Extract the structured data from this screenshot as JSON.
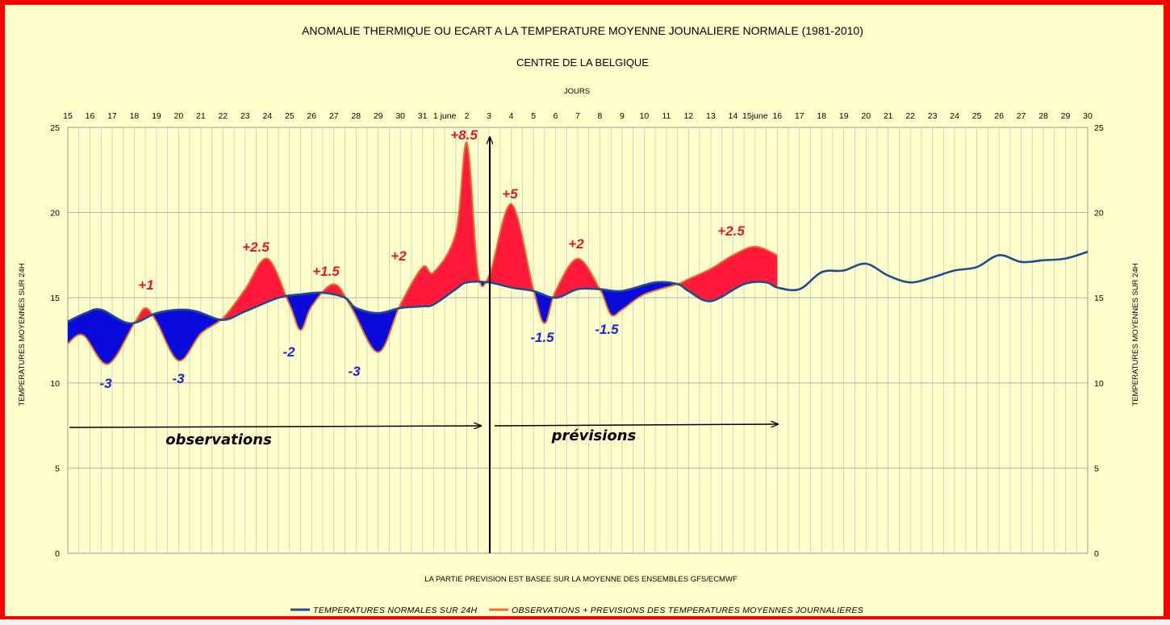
{
  "chart_data": {
    "type": "line",
    "title": "ANOMALIE THERMIQUE OU ECART A LA TEMPERATURE MOYENNE JOUNALIERE NORMALE (1981-2010)",
    "subtitle": "CENTRE DE LA BELGIQUE",
    "xlabel_top": "JOURS",
    "ylabel": "TEMPERATURES MOYENNES SUR 24H",
    "footnote": "LA PARTIE PREVISION EST BASEE SUR LA MOYENNE DES ENSEMBLES GFS/ECMWF",
    "ylim": [
      0,
      25
    ],
    "yticks": [
      "0",
      "5",
      "10",
      "15",
      "20",
      "25"
    ],
    "categories": [
      "15",
      "16",
      "17",
      "18",
      "19",
      "20",
      "21",
      "22",
      "23",
      "24",
      "25",
      "26",
      "27",
      "28",
      "29",
      "30",
      "31",
      "1 june",
      "2",
      "3",
      "4",
      "5",
      "6",
      "7",
      "8",
      "9",
      "10",
      "11",
      "12",
      "13",
      "14",
      "15june",
      "16",
      "17",
      "18",
      "19",
      "20",
      "21",
      "22",
      "23",
      "24",
      "25",
      "26",
      "27",
      "28",
      "29",
      "30"
    ],
    "grid": true,
    "legend_position": "bottom",
    "colors": {
      "normal": "#1f4e8c",
      "observed": "#e8732b",
      "warm_fill": "#ff1a3c",
      "cold_fill": "#0a0adb"
    },
    "series": [
      {
        "name": "TEMPERATURES NORMALES SUR 24H",
        "x": [
          0,
          0.8,
          1.5,
          2.8,
          4.0,
          5.0,
          5.8,
          7.0,
          8.0,
          9.5,
          10.5,
          11.5,
          12.5,
          13.0,
          14.0,
          15.0,
          16.0,
          16.5,
          17.5,
          18.0,
          19.0,
          20.0,
          21.0,
          22.0,
          23.0,
          24.0,
          25.0,
          26.5,
          27.5,
          28.0,
          29.0,
          30.5,
          31.5,
          32.0,
          33.0,
          34.0,
          35.0,
          36.0,
          37.0,
          38.0,
          39.0,
          40.0,
          41.0,
          42.0,
          43.0,
          44.0,
          45.0,
          46.0
        ],
        "values": [
          13.6,
          14.1,
          14.3,
          13.5,
          14.1,
          14.3,
          14.2,
          13.7,
          14.2,
          15.0,
          15.2,
          15.3,
          15.0,
          14.4,
          14.1,
          14.4,
          14.5,
          14.6,
          15.5,
          15.9,
          15.9,
          15.6,
          15.4,
          15.0,
          15.5,
          15.5,
          15.4,
          15.9,
          15.8,
          15.4,
          14.8,
          15.8,
          15.9,
          15.6,
          15.5,
          16.5,
          16.6,
          17.0,
          16.3,
          15.9,
          16.2,
          16.6,
          16.8,
          17.5,
          17.1,
          17.2,
          17.3,
          17.7
        ]
      },
      {
        "name": "OBSERVATIONS + PREVISIONS DES TEMPERATURES MOYENNES JOURNALIERES",
        "x": [
          0,
          0.7,
          1.8,
          3.0,
          3.5,
          4.0,
          5.0,
          6.0,
          7.0,
          8.0,
          9.0,
          10.0,
          10.5,
          11.0,
          12.0,
          12.8,
          14.0,
          15.0,
          16.0,
          16.5,
          17.5,
          18.0,
          18.5,
          19.0,
          20.0,
          21.0,
          21.5,
          22.0,
          23.0,
          24.0,
          24.5,
          25.0,
          26.0,
          27.5,
          28.0,
          29.0,
          30.0,
          31.0,
          32.0
        ],
        "values": [
          12.3,
          12.8,
          11.1,
          13.5,
          14.4,
          13.6,
          11.3,
          12.9,
          13.8,
          15.5,
          17.3,
          14.6,
          13.1,
          14.5,
          15.8,
          14.4,
          11.8,
          14.6,
          16.8,
          16.5,
          18.8,
          24.1,
          16.5,
          16.3,
          20.5,
          15.5,
          13.5,
          15.4,
          17.3,
          15.5,
          14.0,
          14.3,
          15.2,
          15.8,
          16.1,
          16.7,
          17.5,
          18.0,
          17.5
        ]
      }
    ],
    "annotations": [
      {
        "text": "+8.5",
        "color": "red"
      },
      {
        "text": "+1",
        "color": "red"
      },
      {
        "text": "+2.5",
        "color": "red"
      },
      {
        "text": "+1.5",
        "color": "red"
      },
      {
        "text": "+2",
        "color": "red"
      },
      {
        "text": "+5",
        "color": "red"
      },
      {
        "text": "+2",
        "color": "red"
      },
      {
        "text": "+2.5",
        "color": "red"
      },
      {
        "text": "-3",
        "color": "blue"
      },
      {
        "text": "-3",
        "color": "blue"
      },
      {
        "text": "-2",
        "color": "blue"
      },
      {
        "text": "-3",
        "color": "blue"
      },
      {
        "text": "-1.5",
        "color": "blue"
      },
      {
        "text": "-1.5",
        "color": "blue"
      }
    ],
    "observations_label": "observations",
    "forecast_label": "prévisions"
  }
}
